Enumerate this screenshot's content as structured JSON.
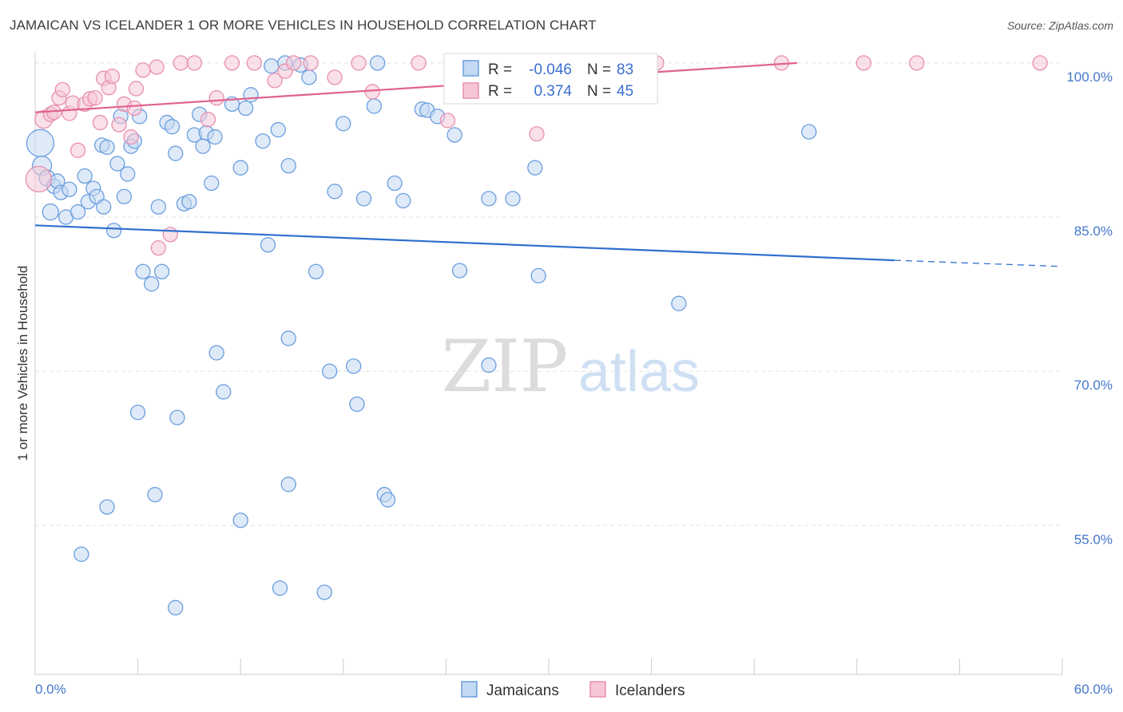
{
  "title": "JAMAICAN VS ICELANDER 1 OR MORE VEHICLES IN HOUSEHOLD CORRELATION CHART",
  "source": "Source: ZipAtlas.com",
  "watermark": {
    "zip": "ZIP",
    "atlas": "atlas"
  },
  "chart_data": {
    "type": "scatter",
    "title": "JAMAICAN VS ICELANDER 1 OR MORE VEHICLES IN HOUSEHOLD CORRELATION CHART",
    "xlabel": "",
    "ylabel": "1 or more Vehicles in Household",
    "xlim": [
      0,
      60
    ],
    "ylim": [
      40.5,
      101
    ],
    "x_ticks": [
      {
        "value": 0,
        "label": "0.0%"
      },
      {
        "value": 60,
        "label": "60.0%"
      }
    ],
    "y_ticks": [
      {
        "value": 100,
        "label": "100.0%"
      },
      {
        "value": 85,
        "label": "85.0%"
      },
      {
        "value": 70,
        "label": "70.0%"
      },
      {
        "value": 55,
        "label": "55.0%"
      }
    ],
    "grid": true,
    "legend_position": "top-center",
    "series": [
      {
        "name": "Jamaicans",
        "color": "#6a9ee0",
        "fill": "#c4d9f3",
        "line_color": "#2f6fcf",
        "R": "-0.046",
        "N": "83",
        "trend": {
          "x0": 0,
          "y0": 84.2,
          "x1": 50.2,
          "y1": 80.8,
          "x_dash_end": 60,
          "y_dash_end": 80.2
        },
        "points": [
          [
            0.3,
            92.2,
            17
          ],
          [
            0.4,
            90.0,
            12
          ],
          [
            0.7,
            88.8,
            10
          ],
          [
            0.9,
            85.5,
            10
          ],
          [
            1.1,
            88.0,
            9
          ],
          [
            1.3,
            88.5,
            9
          ],
          [
            1.5,
            87.4,
            9
          ],
          [
            1.8,
            85.0,
            9
          ],
          [
            2.0,
            87.7,
            9
          ],
          [
            2.5,
            85.5,
            9
          ],
          [
            2.9,
            89.0,
            9
          ],
          [
            3.1,
            86.5,
            9
          ],
          [
            3.4,
            87.8,
            9
          ],
          [
            3.6,
            87.0,
            9
          ],
          [
            3.9,
            92.0,
            9
          ],
          [
            4.0,
            86.0,
            9
          ],
          [
            4.2,
            91.8,
            9
          ],
          [
            4.6,
            83.7,
            9
          ],
          [
            4.8,
            90.2,
            9
          ],
          [
            5.0,
            94.8,
            9
          ],
          [
            5.2,
            87.0,
            9
          ],
          [
            5.4,
            89.2,
            9
          ],
          [
            5.6,
            91.9,
            9
          ],
          [
            5.8,
            92.4,
            9
          ],
          [
            6.1,
            94.8,
            9
          ],
          [
            6.3,
            79.7,
            9
          ],
          [
            6.8,
            78.5,
            9
          ],
          [
            7.2,
            86.0,
            9
          ],
          [
            7.4,
            79.7,
            9
          ],
          [
            7.7,
            94.2,
            9
          ],
          [
            8.0,
            93.8,
            9
          ],
          [
            8.2,
            91.2,
            9
          ],
          [
            8.7,
            86.3,
            9
          ],
          [
            9.0,
            86.5,
            9
          ],
          [
            9.3,
            93.0,
            9
          ],
          [
            9.6,
            95.0,
            9
          ],
          [
            9.8,
            91.9,
            9
          ],
          [
            10.0,
            93.2,
            9
          ],
          [
            10.3,
            88.3,
            9
          ],
          [
            10.5,
            92.8,
            9
          ],
          [
            11.5,
            96.0,
            9
          ],
          [
            12.0,
            89.8,
            9
          ],
          [
            12.3,
            95.6,
            9
          ],
          [
            12.6,
            96.9,
            9
          ],
          [
            13.3,
            92.4,
            9
          ],
          [
            13.6,
            82.3,
            9
          ],
          [
            13.8,
            99.7,
            9
          ],
          [
            14.2,
            93.5,
            9
          ],
          [
            14.6,
            100.0,
            9
          ],
          [
            14.8,
            90.0,
            9
          ],
          [
            15.5,
            99.8,
            9
          ],
          [
            16.0,
            98.6,
            9
          ],
          [
            16.4,
            79.7,
            9
          ],
          [
            17.5,
            87.5,
            9
          ],
          [
            18.0,
            94.1,
            9
          ],
          [
            19.2,
            86.8,
            9
          ],
          [
            19.8,
            95.8,
            9
          ],
          [
            20.0,
            100.0,
            9
          ],
          [
            21.0,
            88.3,
            9
          ],
          [
            21.5,
            86.6,
            9
          ],
          [
            22.6,
            95.5,
            9
          ],
          [
            22.9,
            95.4,
            9
          ],
          [
            23.5,
            94.8,
            9
          ],
          [
            24.5,
            93.0,
            9
          ],
          [
            24.8,
            79.8,
            9
          ],
          [
            25.3,
            97.7,
            9
          ],
          [
            26.5,
            86.8,
            9
          ],
          [
            27.9,
            86.8,
            9
          ],
          [
            29.2,
            89.8,
            9
          ],
          [
            29.4,
            79.3,
            9
          ],
          [
            30.7,
            99.8,
            9
          ],
          [
            31.0,
            100.0,
            9
          ],
          [
            35.0,
            100.0,
            9
          ],
          [
            37.6,
            76.6,
            9
          ],
          [
            45.2,
            93.3,
            9
          ],
          [
            4.2,
            56.8,
            9
          ],
          [
            6.0,
            66.0,
            9
          ],
          [
            8.3,
            65.5,
            9
          ],
          [
            10.6,
            71.8,
            9
          ],
          [
            11.0,
            68.0,
            9
          ],
          [
            12.0,
            55.5,
            9
          ],
          [
            14.8,
            73.2,
            9
          ],
          [
            17.2,
            70.0,
            9
          ],
          [
            18.6,
            70.5,
            9
          ],
          [
            18.8,
            66.8,
            9
          ],
          [
            7.0,
            58.0,
            9
          ],
          [
            14.8,
            59.0,
            9
          ],
          [
            16.9,
            48.5,
            9
          ],
          [
            20.4,
            58.0,
            9
          ],
          [
            20.6,
            57.5,
            9
          ],
          [
            26.5,
            70.6,
            9
          ],
          [
            2.7,
            52.2,
            9
          ],
          [
            8.2,
            47.0,
            9
          ],
          [
            14.3,
            48.9,
            9
          ]
        ]
      },
      {
        "name": "Icelanders",
        "color": "#e88fb0",
        "fill": "#f6c6d6",
        "line_color": "#e0628f",
        "R": "0.374",
        "N": "45",
        "trend": {
          "x0": 0,
          "y0": 95.2,
          "x1": 44.5,
          "y1": 100.0
        },
        "points": [
          [
            0.2,
            88.7,
            16
          ],
          [
            0.5,
            94.5,
            11
          ],
          [
            0.9,
            95.0,
            9
          ],
          [
            1.1,
            95.2,
            9
          ],
          [
            1.4,
            96.6,
            9
          ],
          [
            1.6,
            97.4,
            9
          ],
          [
            2.0,
            95.1,
            9
          ],
          [
            2.2,
            96.1,
            9
          ],
          [
            2.5,
            91.5,
            9
          ],
          [
            2.9,
            96.0,
            9
          ],
          [
            3.2,
            96.5,
            9
          ],
          [
            3.5,
            96.6,
            9
          ],
          [
            3.8,
            94.2,
            9
          ],
          [
            4.0,
            98.5,
            9
          ],
          [
            4.3,
            97.6,
            9
          ],
          [
            4.5,
            98.7,
            9
          ],
          [
            4.9,
            94.0,
            9
          ],
          [
            5.2,
            96.0,
            9
          ],
          [
            5.6,
            92.8,
            9
          ],
          [
            5.8,
            95.6,
            9
          ],
          [
            5.9,
            97.5,
            9
          ],
          [
            6.3,
            99.3,
            9
          ],
          [
            7.1,
            99.6,
            9
          ],
          [
            7.2,
            82.0,
            9
          ],
          [
            7.9,
            83.3,
            9
          ],
          [
            8.5,
            100.0,
            9
          ],
          [
            9.3,
            100.0,
            9
          ],
          [
            10.1,
            94.5,
            9
          ],
          [
            10.6,
            96.6,
            9
          ],
          [
            11.5,
            100.0,
            9
          ],
          [
            12.8,
            100.0,
            9
          ],
          [
            14.0,
            98.3,
            9
          ],
          [
            14.6,
            99.2,
            9
          ],
          [
            15.1,
            100.0,
            9
          ],
          [
            16.1,
            100.0,
            9
          ],
          [
            17.5,
            98.6,
            9
          ],
          [
            18.9,
            100.0,
            9
          ],
          [
            19.7,
            97.2,
            9
          ],
          [
            22.4,
            100.0,
            9
          ],
          [
            24.1,
            94.4,
            9
          ],
          [
            27.3,
            100.0,
            9
          ],
          [
            29.3,
            93.1,
            9
          ],
          [
            32.2,
            100.0,
            9
          ],
          [
            36.3,
            100.0,
            9
          ],
          [
            43.6,
            100.0,
            9
          ],
          [
            48.4,
            100.0,
            9
          ],
          [
            51.5,
            100.0,
            9
          ],
          [
            58.7,
            100.0,
            9
          ]
        ]
      }
    ]
  },
  "legend": {
    "r_label": "R =",
    "n_label": "N =",
    "rows": [
      {
        "r": "-0.046",
        "n": "83"
      },
      {
        "r": "0.374",
        "n": "45"
      }
    ]
  },
  "bottom_legend": [
    "Jamaicans",
    "Icelanders"
  ]
}
